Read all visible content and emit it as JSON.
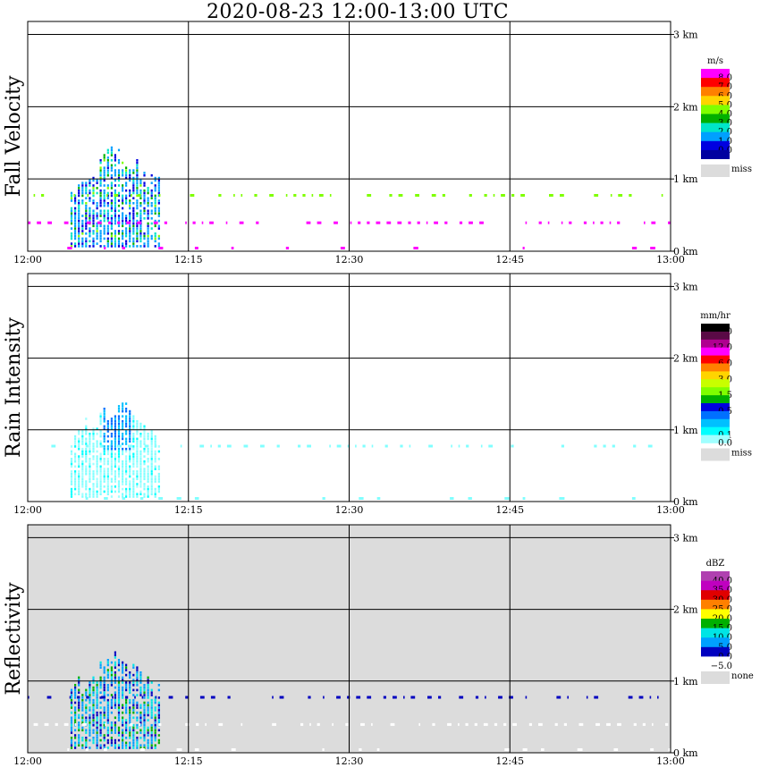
{
  "title": "2020-08-23  12:00-13:00 UTC",
  "colors": {
    "axis": "#000000",
    "miss": "#dcdcdc",
    "panel_background_reflectivity": "#dcdcdc"
  },
  "chart_data": [
    {
      "type": "heatmap",
      "ylabel": "Fall Velocity",
      "units": "m/s",
      "x_ticks": [
        "12:00",
        "12:15",
        "12:30",
        "12:45",
        "13:00"
      ],
      "y_ticks": [
        "0 km",
        "1 km",
        "2 km",
        "3 km"
      ],
      "xlim": [
        "12:00",
        "13:00"
      ],
      "ylim_km": [
        0,
        3.0
      ],
      "grid": true,
      "legend": [
        {
          "label": "8.0",
          "color": "#ff00ff"
        },
        {
          "label": "7.0",
          "color": "#ff0000"
        },
        {
          "label": "6.0",
          "color": "#ff8000"
        },
        {
          "label": "5.0",
          "color": "#ffd400"
        },
        {
          "label": "4.0",
          "color": "#7fff00"
        },
        {
          "label": "3.0",
          "color": "#00b000"
        },
        {
          "label": "2.0",
          "color": "#00e5c8"
        },
        {
          "label": "1.0",
          "color": "#00a0ff"
        },
        {
          "label": "0.0",
          "color": "#0000e0"
        }
      ],
      "legend_bottom_color": "#0000a0",
      "miss_label": "miss",
      "miss_color": "#dcdcdc",
      "background": "#ffffff",
      "features": [
        {
          "desc": "main echo",
          "t_start": 4.0,
          "t_end": 12.2,
          "h_bottom_km": 0.05,
          "h_top_km": 1.5
        },
        {
          "desc": "fall velocity band",
          "height_km": 0.4,
          "t_start": 0,
          "t_end": 60,
          "color": "#ff00ff"
        },
        {
          "desc": "fall velocity band",
          "height_km": 0.78,
          "t_start": 0,
          "t_end": 60,
          "color": "#7fff00"
        }
      ]
    },
    {
      "type": "heatmap",
      "ylabel": "Rain Intensity",
      "units": "mm/hr",
      "x_ticks": [
        "12:00",
        "12:15",
        "12:30",
        "12:45",
        "13:00"
      ],
      "y_ticks": [
        "0 km",
        "1 km",
        "2 km",
        "3 km"
      ],
      "xlim": [
        "12:00",
        "13:00"
      ],
      "ylim_km": [
        0,
        3.0
      ],
      "grid": true,
      "legend": [
        {
          "label": "48.0",
          "color": "#000000"
        },
        {
          "label": "",
          "color": "#5a0a46"
        },
        {
          "label": "12.0",
          "color": "#b00090"
        },
        {
          "label": "",
          "color": "#ff00ff"
        },
        {
          "label": "6.0",
          "color": "#ff0000"
        },
        {
          "label": "",
          "color": "#ff8000"
        },
        {
          "label": "3.0",
          "color": "#ffd400"
        },
        {
          "label": "",
          "color": "#c8ff00"
        },
        {
          "label": "1.5",
          "color": "#7fff00"
        },
        {
          "label": "",
          "color": "#00b000"
        },
        {
          "label": "0.5",
          "color": "#0000e0"
        },
        {
          "label": "",
          "color": "#0070ff"
        },
        {
          "label": "",
          "color": "#00c0ff"
        },
        {
          "label": "0.1",
          "color": "#00ffff"
        },
        {
          "label": "0.0",
          "color": "#a0ffff"
        }
      ],
      "miss_label": "miss",
      "miss_color": "#dcdcdc",
      "background": "#ffffff",
      "features": [
        {
          "desc": "main echo",
          "t_start": 4.0,
          "t_end": 12.2,
          "h_bottom_km": 0.05,
          "h_top_km": 1.5
        },
        {
          "desc": "rain band",
          "height_km": 0.78,
          "t_start": 0,
          "t_end": 60,
          "color": "#80ffff"
        }
      ]
    },
    {
      "type": "heatmap",
      "ylabel": "Reflectivity",
      "units": "dBZ",
      "x_ticks": [
        "12:00",
        "12:15",
        "12:30",
        "12:45",
        "13:00"
      ],
      "y_ticks": [
        "0 km",
        "1 km",
        "2 km",
        "3 km"
      ],
      "xlim": [
        "12:00",
        "13:00"
      ],
      "ylim_km": [
        0,
        3.0
      ],
      "grid": true,
      "legend": [
        {
          "label": "40.0",
          "color": "#b040b0"
        },
        {
          "label": "35.0",
          "color": "#c000c0"
        },
        {
          "label": "30.0",
          "color": "#e00000"
        },
        {
          "label": "25.0",
          "color": "#ff8000"
        },
        {
          "label": "20.0",
          "color": "#ffff00"
        },
        {
          "label": "15.0",
          "color": "#00b000"
        },
        {
          "label": "10.0",
          "color": "#00e5e5"
        },
        {
          "label": "5.0",
          "color": "#00a0ff"
        },
        {
          "label": "0.0",
          "color": "#0000c0"
        },
        {
          "label": "−5.0",
          "color": "#ffffff"
        }
      ],
      "miss_label": "none",
      "miss_color": "#dcdcdc",
      "background": "#dcdcdc",
      "features": [
        {
          "desc": "main echo",
          "t_start": 4.0,
          "t_end": 12.2,
          "h_bottom_km": 0.05,
          "h_top_km": 1.5
        },
        {
          "desc": "reflectivity band",
          "height_km": 0.78,
          "t_start": 0,
          "t_end": 60,
          "color": "#0000c0"
        },
        {
          "desc": "reflectivity band",
          "height_km": 0.4,
          "t_start": 0,
          "t_end": 60,
          "color": "#ffffff"
        }
      ]
    }
  ]
}
